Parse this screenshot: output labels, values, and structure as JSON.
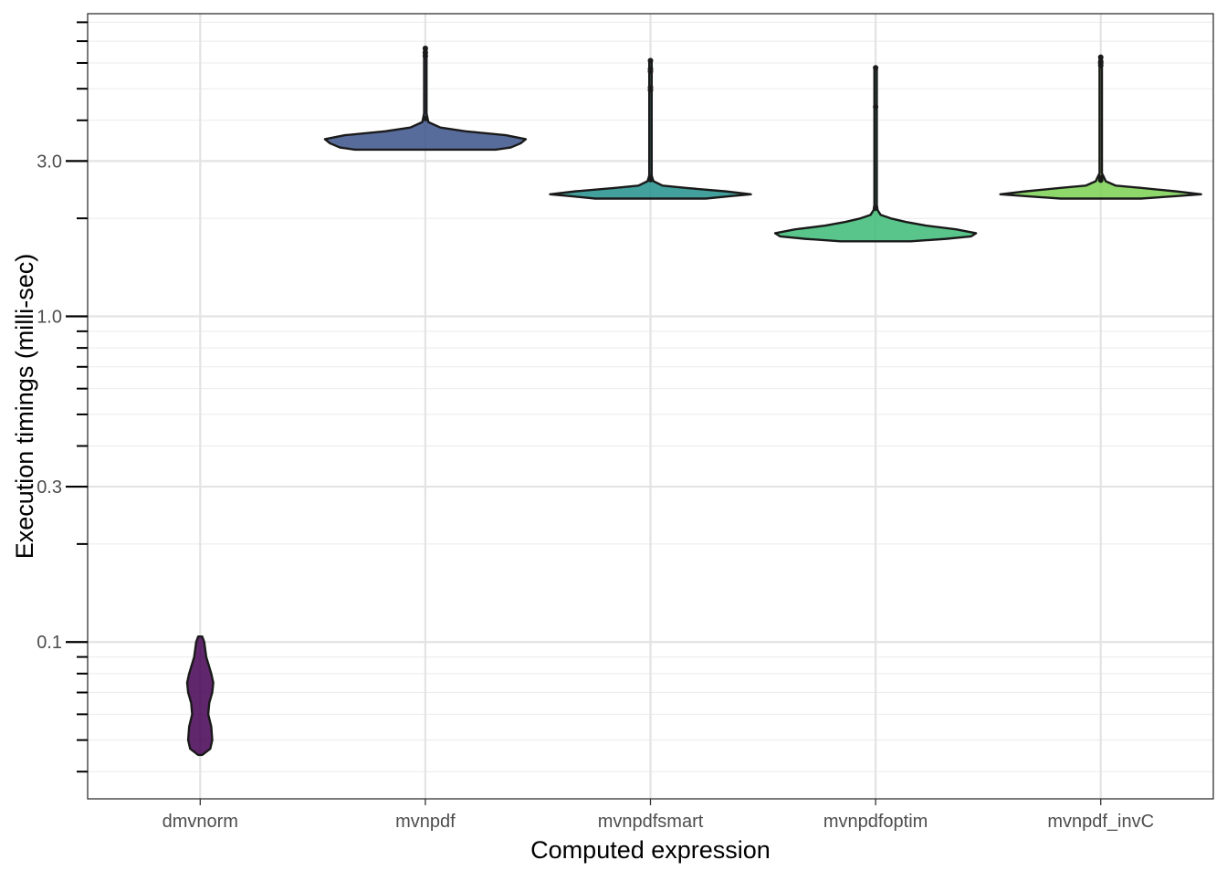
{
  "chart_data": {
    "type": "violin",
    "title": "",
    "xlabel": "Computed expression",
    "ylabel": "Execution timings (milli-sec)",
    "yscale": "log10",
    "ylim": [
      0.033,
      8.5
    ],
    "yticks": [
      0.1,
      0.3,
      1.0,
      3.0
    ],
    "ytick_labels": [
      "0.1",
      "0.3",
      "1.0",
      "3.0"
    ],
    "grid": true,
    "legend": "none",
    "categories": [
      "dmvnorm",
      "mvnpdf",
      "mvnpdfsmart",
      "mvnpdfoptim",
      "mvnpdf_invC"
    ],
    "series": [
      {
        "category": "dmvnorm",
        "color": "#440154",
        "profile": [
          [
            0.045,
            0.02
          ],
          [
            0.047,
            0.1
          ],
          [
            0.05,
            0.12
          ],
          [
            0.055,
            0.11
          ],
          [
            0.06,
            0.08
          ],
          [
            0.065,
            0.09
          ],
          [
            0.07,
            0.12
          ],
          [
            0.075,
            0.13
          ],
          [
            0.08,
            0.11
          ],
          [
            0.09,
            0.06
          ],
          [
            0.1,
            0.04
          ],
          [
            0.104,
            0.02
          ]
        ],
        "outliers": []
      },
      {
        "category": "mvnpdf",
        "color": "#3b528b",
        "profile": [
          [
            3.25,
            0.7
          ],
          [
            3.3,
            0.85
          ],
          [
            3.4,
            0.95
          ],
          [
            3.5,
            1.0
          ],
          [
            3.6,
            0.8
          ],
          [
            3.7,
            0.4
          ],
          [
            3.8,
            0.15
          ],
          [
            3.95,
            0.03
          ],
          [
            4.2,
            0.012
          ],
          [
            6.2,
            0.012
          ],
          [
            6.7,
            0.012
          ]
        ],
        "outliers": [
          4.05,
          6.3,
          6.45,
          6.65
        ]
      },
      {
        "category": "mvnpdfsmart",
        "color": "#21908c",
        "profile": [
          [
            2.3,
            0.55
          ],
          [
            2.34,
            0.8
          ],
          [
            2.37,
            1.0
          ],
          [
            2.42,
            0.75
          ],
          [
            2.48,
            0.35
          ],
          [
            2.52,
            0.12
          ],
          [
            2.6,
            0.03
          ],
          [
            2.7,
            0.012
          ],
          [
            6.1,
            0.012
          ]
        ],
        "outliers": [
          2.63,
          2.68,
          4.95,
          5.05,
          5.65,
          5.75,
          6.1
        ]
      },
      {
        "category": "mvnpdfoptim",
        "color": "#3cbb75",
        "profile": [
          [
            1.7,
            0.35
          ],
          [
            1.73,
            0.7
          ],
          [
            1.76,
            0.95
          ],
          [
            1.8,
            1.0
          ],
          [
            1.85,
            0.8
          ],
          [
            1.9,
            0.5
          ],
          [
            1.95,
            0.3
          ],
          [
            2.0,
            0.15
          ],
          [
            2.05,
            0.05
          ],
          [
            2.12,
            0.02
          ],
          [
            2.2,
            0.012
          ],
          [
            5.8,
            0.012
          ]
        ],
        "outliers": [
          2.15,
          4.4,
          5.8
        ]
      },
      {
        "category": "mvnpdf_invC",
        "color": "#7ad151",
        "profile": [
          [
            2.3,
            0.4
          ],
          [
            2.34,
            0.75
          ],
          [
            2.37,
            1.0
          ],
          [
            2.42,
            0.75
          ],
          [
            2.48,
            0.4
          ],
          [
            2.52,
            0.15
          ],
          [
            2.6,
            0.05
          ],
          [
            2.68,
            0.03
          ],
          [
            2.75,
            0.012
          ],
          [
            6.25,
            0.012
          ]
        ],
        "outliers": [
          2.62,
          2.67,
          5.9,
          6.0,
          6.05,
          6.25
        ]
      }
    ]
  }
}
